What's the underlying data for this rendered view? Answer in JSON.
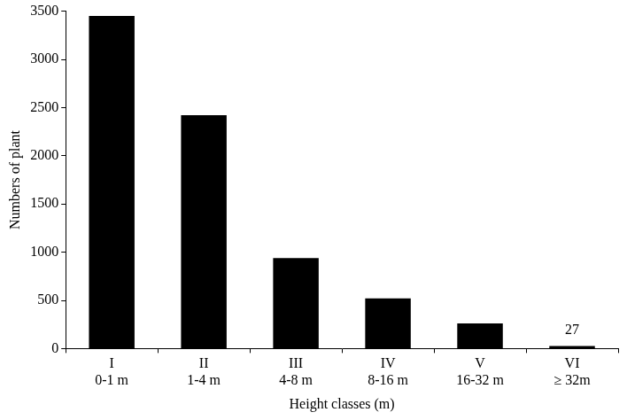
{
  "chart_data": {
    "type": "bar",
    "x_label": "Height classes (m)",
    "y_label": "Numbers of plant",
    "categories": [
      [
        "I",
        "0-1 m"
      ],
      [
        "II",
        "1-4 m"
      ],
      [
        "III",
        "4-8 m"
      ],
      [
        "IV",
        "8-16 m"
      ],
      [
        "V",
        "16-32 m"
      ],
      [
        "VI",
        "≥ 32m"
      ]
    ],
    "values": [
      3450,
      2420,
      940,
      520,
      260,
      27
    ],
    "data_labels": true,
    "value_labels": [
      null,
      null,
      null,
      null,
      null,
      "27"
    ],
    "color": "#000000",
    "ylim": [
      0,
      3500
    ],
    "yticks": [
      0,
      500,
      1000,
      1500,
      2000,
      2500,
      3000,
      3500
    ],
    "grid": false
  }
}
